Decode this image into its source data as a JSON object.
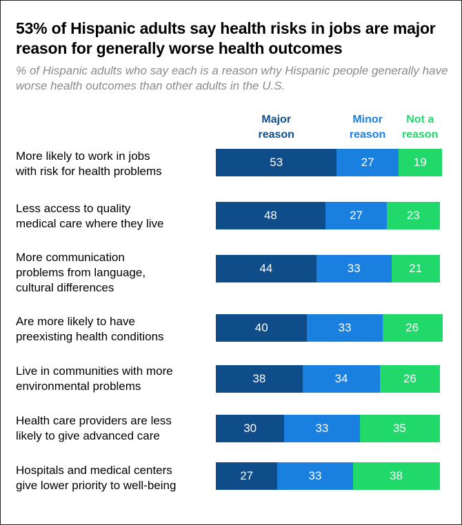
{
  "title": "53% of Hispanic adults say health risks in jobs are major reason for generally worse health outcomes",
  "subtitle": "% of Hispanic adults who say each is a reason why Hispanic people generally have worse health outcomes than other adults in the U.S.",
  "chart_data": {
    "type": "bar",
    "orientation": "horizontal",
    "stacked": true,
    "title": "53% of Hispanic adults say health risks in jobs are major reason for generally worse health outcomes",
    "subtitle": "% of Hispanic adults who say each is a reason why Hispanic people generally have worse health outcomes than other adults in the U.S.",
    "xlabel": "",
    "ylabel": "",
    "xlim": [
      0,
      100
    ],
    "grid": false,
    "legend_position": "top",
    "categories": [
      "More likely to work in jobs with risk for health problems",
      "Less access to quality medical care where they live",
      "More communication problems from language, cultural differences",
      "Are more likely to have preexisting health conditions",
      "Live in communities with more environmental problems",
      "Health care providers are less likely to give advanced care",
      "Hospitals and medical centers give lower priority to well-being"
    ],
    "category_lines": [
      [
        "More likely to work in jobs",
        "with risk for health problems"
      ],
      [
        "Less access to quality",
        "medical care where they live"
      ],
      [
        "More communication",
        "problems from language,",
        "cultural differences"
      ],
      [
        "Are more likely to have",
        "preexisting health conditions"
      ],
      [
        "Live in communities with more",
        "environmental problems"
      ],
      [
        "Health care providers are less",
        "likely to give advanced care"
      ],
      [
        "Hospitals and medical centers",
        "give lower priority to well-being"
      ]
    ],
    "series": [
      {
        "name": "Major reason",
        "legend_lines": [
          "Major",
          "reason"
        ],
        "color": "#0e4c8a",
        "values": [
          53,
          48,
          44,
          40,
          38,
          30,
          27
        ]
      },
      {
        "name": "Minor reason",
        "legend_lines": [
          "Minor",
          "reason"
        ],
        "color": "#1a80e0",
        "values": [
          27,
          27,
          33,
          33,
          34,
          33,
          33
        ]
      },
      {
        "name": "Not a reason",
        "legend_lines": [
          "Not a",
          "reason"
        ],
        "color": "#21d96b",
        "values": [
          19,
          23,
          21,
          26,
          26,
          35,
          38
        ]
      }
    ]
  }
}
